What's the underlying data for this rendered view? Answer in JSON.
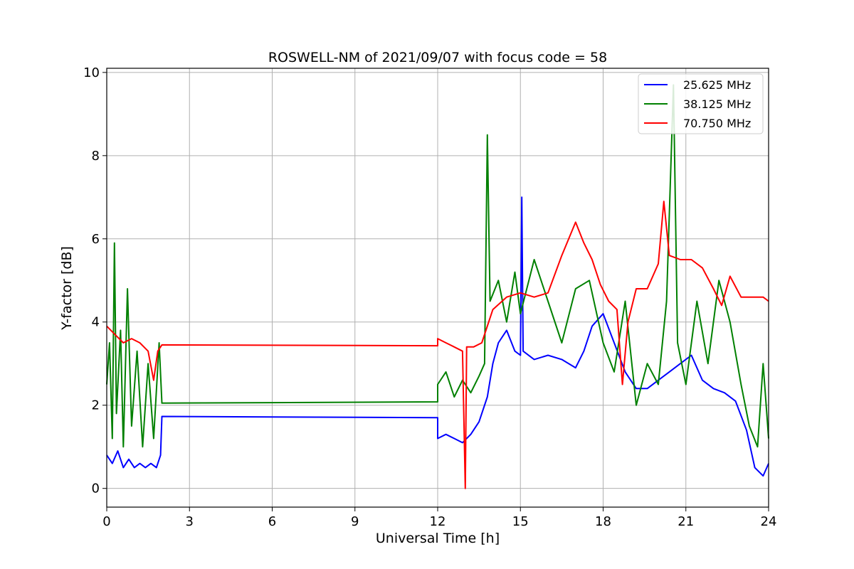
{
  "chart_data": {
    "type": "line",
    "title": "ROSWELL-NM of 2021/09/07 with focus code = 58",
    "xlabel": "Universal Time [h]",
    "ylabel": "Y-factor [dB]",
    "xlim": [
      0,
      24
    ],
    "ylim": [
      -0.45,
      10.1
    ],
    "xticks": [
      0,
      3,
      6,
      9,
      12,
      15,
      18,
      21,
      24
    ],
    "yticks": [
      0,
      2,
      4,
      6,
      8,
      10
    ],
    "grid": true,
    "legend_position": "top-right",
    "series": [
      {
        "name": "25.625 MHz",
        "color": "#0000ff",
        "points": [
          [
            0,
            0.8
          ],
          [
            0.2,
            0.6
          ],
          [
            0.4,
            0.9
          ],
          [
            0.6,
            0.5
          ],
          [
            0.8,
            0.7
          ],
          [
            1.0,
            0.5
          ],
          [
            1.2,
            0.6
          ],
          [
            1.4,
            0.5
          ],
          [
            1.6,
            0.6
          ],
          [
            1.8,
            0.5
          ],
          [
            1.95,
            0.8
          ],
          [
            2.0,
            1.73
          ],
          [
            12.0,
            1.7
          ],
          [
            12.0,
            1.2
          ],
          [
            12.3,
            1.3
          ],
          [
            12.6,
            1.2
          ],
          [
            12.9,
            1.1
          ],
          [
            13.2,
            1.3
          ],
          [
            13.5,
            1.6
          ],
          [
            13.8,
            2.2
          ],
          [
            14.0,
            3.0
          ],
          [
            14.2,
            3.5
          ],
          [
            14.5,
            3.8
          ],
          [
            14.8,
            3.3
          ],
          [
            15.0,
            3.2
          ],
          [
            15.05,
            7.0
          ],
          [
            15.1,
            3.3
          ],
          [
            15.5,
            3.1
          ],
          [
            16.0,
            3.2
          ],
          [
            16.5,
            3.1
          ],
          [
            17.0,
            2.9
          ],
          [
            17.3,
            3.3
          ],
          [
            17.6,
            3.9
          ],
          [
            18.0,
            4.2
          ],
          [
            18.4,
            3.5
          ],
          [
            18.8,
            2.8
          ],
          [
            19.2,
            2.4
          ],
          [
            19.6,
            2.4
          ],
          [
            20.0,
            2.6
          ],
          [
            20.4,
            2.8
          ],
          [
            20.8,
            3.0
          ],
          [
            21.2,
            3.2
          ],
          [
            21.6,
            2.6
          ],
          [
            22.0,
            2.4
          ],
          [
            22.4,
            2.3
          ],
          [
            22.8,
            2.1
          ],
          [
            23.2,
            1.4
          ],
          [
            23.5,
            0.5
          ],
          [
            23.8,
            0.3
          ],
          [
            24.0,
            0.6
          ]
        ]
      },
      {
        "name": "38.125 MHz",
        "color": "#008000",
        "points": [
          [
            0,
            2.5
          ],
          [
            0.1,
            3.5
          ],
          [
            0.2,
            1.2
          ],
          [
            0.28,
            5.9
          ],
          [
            0.35,
            1.8
          ],
          [
            0.5,
            3.8
          ],
          [
            0.6,
            1.0
          ],
          [
            0.75,
            4.8
          ],
          [
            0.9,
            1.5
          ],
          [
            1.1,
            3.3
          ],
          [
            1.3,
            1.0
          ],
          [
            1.5,
            3.0
          ],
          [
            1.7,
            1.2
          ],
          [
            1.9,
            3.5
          ],
          [
            2.0,
            2.05
          ],
          [
            12.0,
            2.08
          ],
          [
            12.0,
            2.5
          ],
          [
            12.3,
            2.8
          ],
          [
            12.6,
            2.2
          ],
          [
            12.9,
            2.6
          ],
          [
            13.2,
            2.3
          ],
          [
            13.5,
            2.7
          ],
          [
            13.7,
            3.0
          ],
          [
            13.8,
            8.5
          ],
          [
            13.9,
            4.5
          ],
          [
            14.2,
            5.0
          ],
          [
            14.5,
            4.0
          ],
          [
            14.8,
            5.2
          ],
          [
            15.0,
            4.2
          ],
          [
            15.5,
            5.5
          ],
          [
            16.0,
            4.5
          ],
          [
            16.5,
            3.5
          ],
          [
            17.0,
            4.8
          ],
          [
            17.5,
            5.0
          ],
          [
            18.0,
            3.5
          ],
          [
            18.4,
            2.8
          ],
          [
            18.8,
            4.5
          ],
          [
            19.2,
            2.0
          ],
          [
            19.6,
            3.0
          ],
          [
            20.0,
            2.5
          ],
          [
            20.3,
            4.5
          ],
          [
            20.55,
            9.7
          ],
          [
            20.7,
            3.5
          ],
          [
            21.0,
            2.5
          ],
          [
            21.4,
            4.5
          ],
          [
            21.8,
            3.0
          ],
          [
            22.2,
            5.0
          ],
          [
            22.6,
            4.0
          ],
          [
            23.0,
            2.5
          ],
          [
            23.3,
            1.5
          ],
          [
            23.6,
            1.0
          ],
          [
            23.8,
            3.0
          ],
          [
            24.0,
            1.2
          ]
        ]
      },
      {
        "name": "70.750 MHz",
        "color": "#ff0000",
        "points": [
          [
            0,
            3.9
          ],
          [
            0.3,
            3.7
          ],
          [
            0.6,
            3.5
          ],
          [
            0.9,
            3.6
          ],
          [
            1.2,
            3.5
          ],
          [
            1.5,
            3.3
          ],
          [
            1.7,
            2.6
          ],
          [
            1.85,
            3.3
          ],
          [
            2.0,
            3.45
          ],
          [
            12.0,
            3.43
          ],
          [
            12.0,
            3.6
          ],
          [
            12.3,
            3.5
          ],
          [
            12.6,
            3.4
          ],
          [
            12.9,
            3.3
          ],
          [
            13.0,
            0.0
          ],
          [
            13.05,
            3.4
          ],
          [
            13.3,
            3.4
          ],
          [
            13.6,
            3.5
          ],
          [
            14.0,
            4.3
          ],
          [
            14.5,
            4.6
          ],
          [
            15.0,
            4.7
          ],
          [
            15.5,
            4.6
          ],
          [
            16.0,
            4.7
          ],
          [
            16.5,
            5.6
          ],
          [
            17.0,
            6.4
          ],
          [
            17.3,
            5.9
          ],
          [
            17.6,
            5.5
          ],
          [
            17.9,
            4.9
          ],
          [
            18.2,
            4.5
          ],
          [
            18.5,
            4.3
          ],
          [
            18.7,
            2.5
          ],
          [
            18.9,
            4.0
          ],
          [
            19.2,
            4.8
          ],
          [
            19.6,
            4.8
          ],
          [
            20.0,
            5.4
          ],
          [
            20.2,
            6.9
          ],
          [
            20.4,
            5.6
          ],
          [
            20.8,
            5.5
          ],
          [
            21.2,
            5.5
          ],
          [
            21.6,
            5.3
          ],
          [
            22.0,
            4.8
          ],
          [
            22.3,
            4.4
          ],
          [
            22.6,
            5.1
          ],
          [
            23.0,
            4.6
          ],
          [
            23.4,
            4.6
          ],
          [
            23.8,
            4.6
          ],
          [
            24.0,
            4.5
          ]
        ]
      }
    ]
  }
}
